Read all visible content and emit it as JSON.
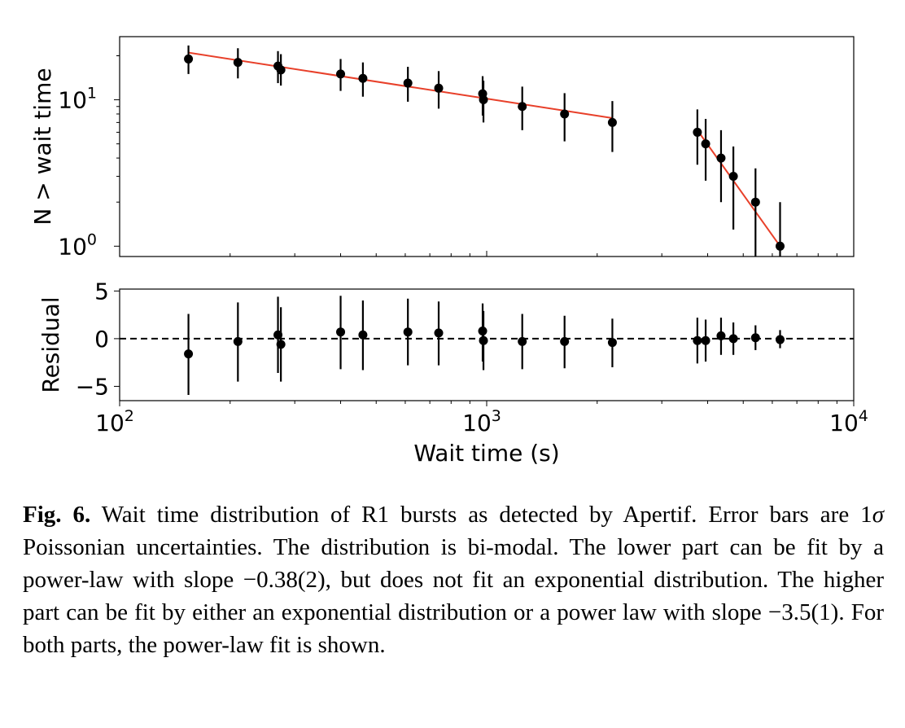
{
  "chart_data": [
    {
      "type": "scatter",
      "panel": "top",
      "ylabel": "N > wait time",
      "xscale": "log",
      "yscale": "log",
      "xlim": [
        100,
        10000
      ],
      "ylim": [
        0.85,
        27
      ],
      "yticks": [
        {
          "value": 10,
          "base": "10",
          "exp": "1"
        },
        {
          "value": 1,
          "base": "10",
          "exp": "0"
        }
      ],
      "series": [
        {
          "style": "points-with-errorbars",
          "color": "#000000",
          "points": [
            {
              "x": 154,
              "y": 19,
              "lo": 15,
              "hi": 23.5
            },
            {
              "x": 210,
              "y": 18,
              "lo": 14,
              "hi": 22.5
            },
            {
              "x": 270,
              "y": 17,
              "lo": 13,
              "hi": 21.5
            },
            {
              "x": 275,
              "y": 16,
              "lo": 12.5,
              "hi": 20.5
            },
            {
              "x": 400,
              "y": 15,
              "lo": 11.5,
              "hi": 19
            },
            {
              "x": 460,
              "y": 14,
              "lo": 10.5,
              "hi": 18
            },
            {
              "x": 610,
              "y": 13,
              "lo": 9.7,
              "hi": 16.8
            },
            {
              "x": 740,
              "y": 12,
              "lo": 8.7,
              "hi": 15.7
            },
            {
              "x": 975,
              "y": 11,
              "lo": 7.8,
              "hi": 14.5
            },
            {
              "x": 980,
              "y": 10,
              "lo": 7.0,
              "hi": 13.5
            },
            {
              "x": 1250,
              "y": 9,
              "lo": 6.2,
              "hi": 12.3
            },
            {
              "x": 1630,
              "y": 8,
              "lo": 5.2,
              "hi": 11.1
            },
            {
              "x": 2200,
              "y": 7,
              "lo": 4.4,
              "hi": 9.8
            },
            {
              "x": 3750,
              "y": 6,
              "lo": 3.6,
              "hi": 8.6
            },
            {
              "x": 3950,
              "y": 5,
              "lo": 2.8,
              "hi": 7.4
            },
            {
              "x": 4350,
              "y": 4,
              "lo": 2.0,
              "hi": 6.2
            },
            {
              "x": 4700,
              "y": 3,
              "lo": 1.3,
              "hi": 4.8
            },
            {
              "x": 5400,
              "y": 2,
              "lo": 0.75,
              "hi": 3.4
            },
            {
              "x": 6300,
              "y": 1,
              "lo": 0.5,
              "hi": 2.0
            }
          ]
        },
        {
          "style": "fit-line",
          "color": "#e8402a",
          "segments": [
            [
              [
                154,
                21
              ],
              [
                2200,
                7.5
              ]
            ],
            [
              [
                3750,
                6.2
              ],
              [
                6300,
                1.0
              ]
            ]
          ]
        }
      ]
    },
    {
      "type": "scatter",
      "panel": "bottom",
      "ylabel": "Residual",
      "xlabel": "Wait time (s)",
      "xscale": "log",
      "xlim": [
        100,
        10000
      ],
      "ylim": [
        -6.5,
        5.2
      ],
      "yticks": [
        {
          "value": 5,
          "label": "5"
        },
        {
          "value": 0,
          "label": "0"
        },
        {
          "value": -5,
          "label": "−5"
        }
      ],
      "xticks": [
        {
          "value": 100,
          "base": "10",
          "exp": "2"
        },
        {
          "value": 1000,
          "base": "10",
          "exp": "3"
        },
        {
          "value": 10000,
          "base": "10",
          "exp": "4"
        }
      ],
      "reference_line": {
        "y": 0,
        "style": "dashed"
      },
      "series": [
        {
          "style": "points-with-errorbars",
          "color": "#000000",
          "points": [
            {
              "x": 154,
              "y": -1.6,
              "lo": -5.9,
              "hi": 2.6
            },
            {
              "x": 210,
              "y": -0.3,
              "lo": -4.5,
              "hi": 3.8
            },
            {
              "x": 270,
              "y": 0.4,
              "lo": -3.6,
              "hi": 4.4
            },
            {
              "x": 275,
              "y": -0.6,
              "lo": -4.5,
              "hi": 3.3
            },
            {
              "x": 400,
              "y": 0.7,
              "lo": -3.2,
              "hi": 4.5
            },
            {
              "x": 460,
              "y": 0.4,
              "lo": -3.3,
              "hi": 4.0
            },
            {
              "x": 610,
              "y": 0.7,
              "lo": -2.8,
              "hi": 4.2
            },
            {
              "x": 740,
              "y": 0.6,
              "lo": -2.8,
              "hi": 3.9
            },
            {
              "x": 975,
              "y": 0.8,
              "lo": -2.4,
              "hi": 3.7
            },
            {
              "x": 980,
              "y": -0.2,
              "lo": -3.3,
              "hi": 2.9
            },
            {
              "x": 1250,
              "y": -0.3,
              "lo": -3.2,
              "hi": 2.6
            },
            {
              "x": 1630,
              "y": -0.3,
              "lo": -3.1,
              "hi": 2.4
            },
            {
              "x": 2200,
              "y": -0.4,
              "lo": -3.0,
              "hi": 2.1
            },
            {
              "x": 3750,
              "y": -0.2,
              "lo": -2.6,
              "hi": 2.2
            },
            {
              "x": 3950,
              "y": -0.2,
              "lo": -2.4,
              "hi": 2.0
            },
            {
              "x": 4350,
              "y": 0.3,
              "lo": -1.7,
              "hi": 2.2
            },
            {
              "x": 4700,
              "y": 0.0,
              "lo": -1.7,
              "hi": 1.7
            },
            {
              "x": 5400,
              "y": 0.1,
              "lo": -1.2,
              "hi": 1.4
            },
            {
              "x": 6300,
              "y": -0.1,
              "lo": -1.0,
              "hi": 0.9
            }
          ]
        }
      ]
    }
  ],
  "caption": {
    "label": "Fig. 6.",
    "part1": " Wait time distribution of R1 bursts as detected by Apertif. Error bars are 1",
    "sigma": "σ",
    "part2": " Poissonian uncertainties. The distribution is bi-modal. The lower part can be fit by a power-law with slope −0.38(2), but does not fit an exponential distribution. The higher part can be fit by either an exponential distribution or a power law with slope −3.5(1). For both parts, the power-law fit is shown."
  }
}
